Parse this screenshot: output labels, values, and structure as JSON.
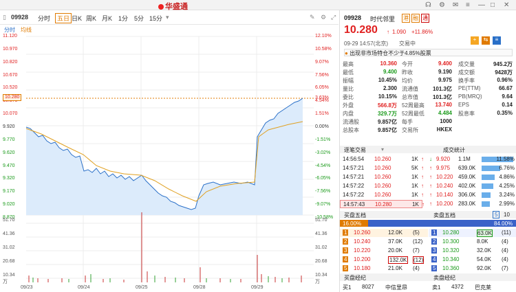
{
  "header": {
    "logo": "华盛通",
    "search_code": "09928"
  },
  "toolbar": {
    "tabs": [
      "分时",
      "五日",
      "日K",
      "周K",
      "月K",
      "1分",
      "5分",
      "15分"
    ],
    "active": "五日",
    "code": "09928"
  },
  "subtabs": [
    "分时",
    "均线"
  ],
  "chart": {
    "price_labels": [
      "11.120",
      "10.970",
      "10.820",
      "10.670",
      "10.520",
      "10.370",
      "10.280",
      "10.070",
      "9.920",
      "9.770",
      "9.620",
      "9.470",
      "9.320",
      "9.170",
      "9.020",
      "8.870"
    ],
    "pct_labels": [
      "12.10%",
      "10.58%",
      "9.07%",
      "7.56%",
      "6.05%",
      "4.54%",
      "3.63%",
      "1.51%",
      "0.00%",
      "-1.51%",
      "-3.02%",
      "-4.54%",
      "-6.05%",
      "-7.56%",
      "-9.07%",
      "-10.58%"
    ],
    "vol_labels": [
      "51.70",
      "41.36",
      "31.02",
      "20.68",
      "10.34",
      "万"
    ],
    "dates": [
      "09/23",
      "09/24",
      "09/25",
      "09/28",
      "09/29"
    ],
    "current_price": "10.280",
    "current_pct": "3.63%"
  },
  "quote": {
    "code": "09928",
    "name": "时代邻里",
    "price": "10.280",
    "change": "1.090",
    "pct": "+11.86%",
    "time": "09-29 14:57(北京)",
    "status": "交易中",
    "notice": "出现非市场特仓不少于4.85%股票"
  },
  "stats": [
    [
      "最高",
      "10.360",
      "今开",
      "9.400",
      "成交量",
      "945.2万"
    ],
    [
      "最低",
      "9.400",
      "昨收",
      "9.190",
      "成交额",
      "9428万"
    ],
    [
      "振幅",
      "10.45%",
      "均价",
      "9.975",
      "换手率",
      "0.96%"
    ],
    [
      "量比",
      "2.300",
      "流通值",
      "101.3亿",
      "PE(TTM)",
      "66.67"
    ],
    [
      "委比",
      "10.15%",
      "总市值",
      "101.3亿",
      "PB(MRQ)",
      "9.64"
    ],
    [
      "外盘",
      "566.8万",
      "52周最高",
      "13.740",
      "EPS",
      "0.14"
    ],
    [
      "内盘",
      "329.7万",
      "52周最低",
      "4.484",
      "股息率",
      "0.35%"
    ],
    [
      "流通股",
      "9.857亿",
      "每手",
      "1000",
      "",
      ""
    ],
    [
      "总股本",
      "9.857亿",
      "交易所",
      "HKEX",
      "",
      ""
    ]
  ],
  "trades_header": {
    "left": "逐笔交易",
    "right": "成交统计"
  },
  "trades": [
    [
      "14:56:54",
      "10.260",
      "1K"
    ],
    [
      "14:57:21",
      "10.260",
      "5K"
    ],
    [
      "14:57:21",
      "10.260",
      "1K"
    ],
    [
      "14:57:22",
      "10.260",
      "1K"
    ],
    [
      "14:57:22",
      "10.260",
      "1K"
    ],
    [
      "14:57:43",
      "10.280",
      "1K"
    ]
  ],
  "stat_rows": [
    [
      "9.920",
      "1.1M",
      "11.58%"
    ],
    [
      "9.975",
      "639.0K",
      "6.76%"
    ],
    [
      "10.220",
      "459.0K",
      "4.86%"
    ],
    [
      "10.240",
      "402.0K",
      "4.25%"
    ],
    [
      "10.140",
      "306.0K",
      "3.24%"
    ],
    [
      "10.200",
      "283.0K",
      "2.99%"
    ]
  ],
  "depth_header": {
    "bid": "买盘五档",
    "ask": "卖盘五档",
    "bid_pct": "16.00%",
    "ask_pct": "84.00%",
    "n5": "5",
    "n10": "10"
  },
  "bids": [
    [
      "1",
      "10.260",
      "12.0K",
      "(5)"
    ],
    [
      "2",
      "10.240",
      "37.0K",
      "(12)"
    ],
    [
      "3",
      "10.220",
      "20.0K",
      "(7)"
    ],
    [
      "4",
      "10.200",
      "132.0K",
      "(12)"
    ],
    [
      "5",
      "10.180",
      "21.0K",
      "(4)"
    ]
  ],
  "asks": [
    [
      "1",
      "10.280",
      "63.0K",
      "(11)"
    ],
    [
      "2",
      "10.300",
      "8.0K",
      "(4)"
    ],
    [
      "3",
      "10.320",
      "32.0K",
      "(4)"
    ],
    [
      "4",
      "10.340",
      "54.0K",
      "(4)"
    ],
    [
      "5",
      "10.360",
      "92.0K",
      "(7)"
    ]
  ],
  "brokers": {
    "bid_title": "买盘经纪",
    "ask_title": "卖盘经纪",
    "bid1": [
      "买1",
      "8027",
      "中信里昂"
    ],
    "ask1": [
      "卖1",
      "4372",
      "巴克莱"
    ]
  }
}
